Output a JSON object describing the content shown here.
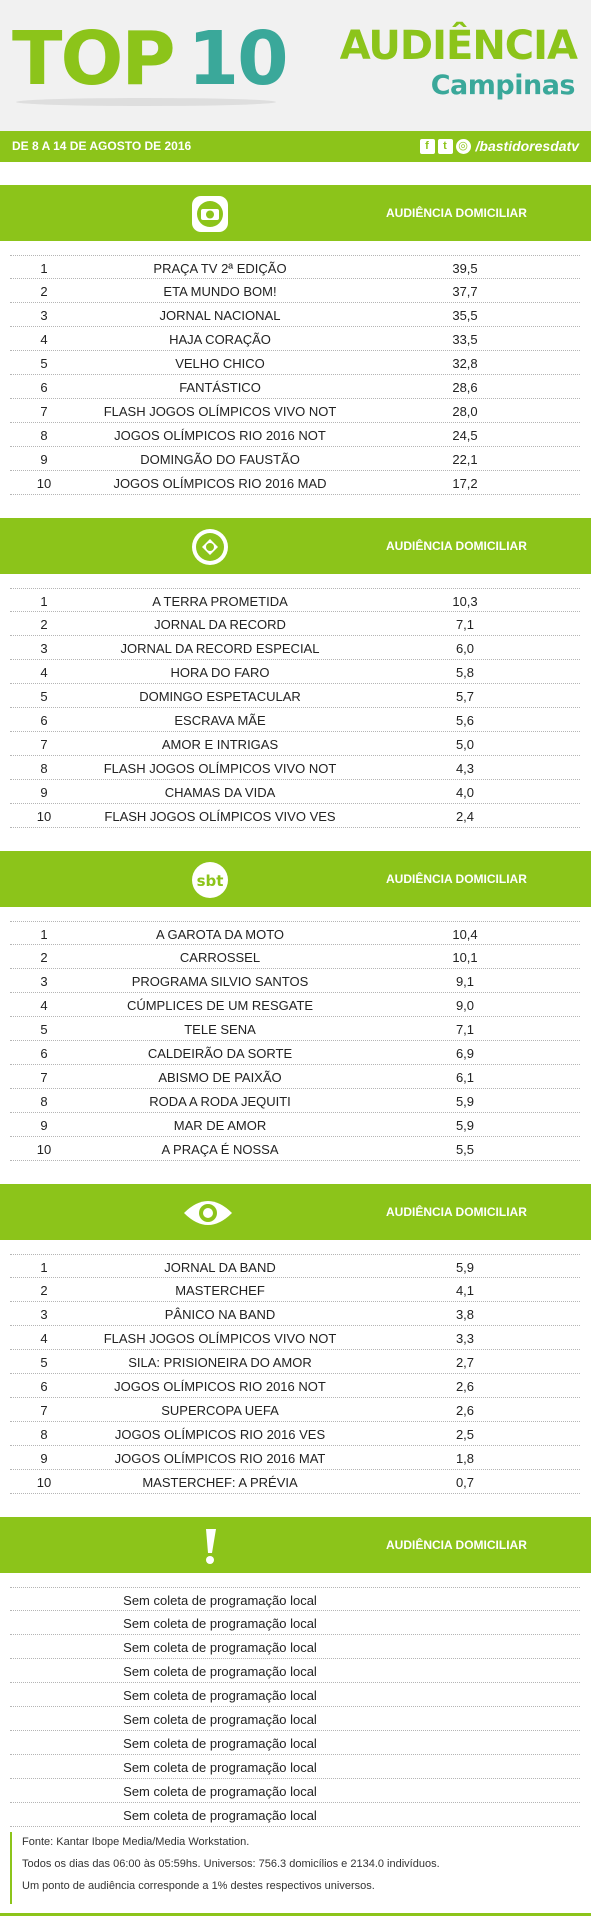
{
  "header": {
    "top": "TOP",
    "ten": "10",
    "audience_title": "AUDIÊNCIA",
    "audience_city": "Campinas"
  },
  "datebar": {
    "date": "DE 8 A 14 DE AGOSTO DE 2016",
    "handle": "/bastidoresdatv",
    "icons": [
      "facebook-icon",
      "twitter-icon",
      "instagram-icon"
    ]
  },
  "colors": {
    "accent": "#8cc41a",
    "secondary": "#3aa89a"
  },
  "sections": [
    {
      "logo": "globo-logo-icon",
      "label": "AUDIÊNCIA DOMICILIAR",
      "rows": [
        {
          "rank": "1",
          "program": "PRAÇA TV 2ª EDIÇÃO",
          "value": "39,5"
        },
        {
          "rank": "2",
          "program": "ETA MUNDO BOM!",
          "value": "37,7"
        },
        {
          "rank": "3",
          "program": "JORNAL NACIONAL",
          "value": "35,5"
        },
        {
          "rank": "4",
          "program": "HAJA CORAÇÃO",
          "value": "33,5"
        },
        {
          "rank": "5",
          "program": "VELHO CHICO",
          "value": "32,8"
        },
        {
          "rank": "6",
          "program": "FANTÁSTICO",
          "value": "28,6"
        },
        {
          "rank": "7",
          "program": "FLASH JOGOS OLÍMPICOS VIVO NOT",
          "value": "28,0"
        },
        {
          "rank": "8",
          "program": "JOGOS OLÍMPICOS RIO 2016 NOT",
          "value": "24,5"
        },
        {
          "rank": "9",
          "program": "DOMINGÃO DO FAUSTÃO",
          "value": "22,1"
        },
        {
          "rank": "10",
          "program": "JOGOS OLÍMPICOS RIO 2016 MAD",
          "value": "17,2"
        }
      ]
    },
    {
      "logo": "record-logo-icon",
      "label": "AUDIÊNCIA DOMICILIAR",
      "rows": [
        {
          "rank": "1",
          "program": "A TERRA PROMETIDA",
          "value": "10,3"
        },
        {
          "rank": "2",
          "program": "JORNAL DA RECORD",
          "value": "7,1"
        },
        {
          "rank": "3",
          "program": "JORNAL DA RECORD ESPECIAL",
          "value": "6,0"
        },
        {
          "rank": "4",
          "program": "HORA DO FARO",
          "value": "5,8"
        },
        {
          "rank": "5",
          "program": "DOMINGO ESPETACULAR",
          "value": "5,7"
        },
        {
          "rank": "6",
          "program": "ESCRAVA MÃE",
          "value": "5,6"
        },
        {
          "rank": "7",
          "program": "AMOR E INTRIGAS",
          "value": "5,0"
        },
        {
          "rank": "8",
          "program": "FLASH JOGOS OLÍMPICOS VIVO NOT",
          "value": "4,3"
        },
        {
          "rank": "9",
          "program": "CHAMAS DA VIDA",
          "value": "4,0"
        },
        {
          "rank": "10",
          "program": "FLASH JOGOS OLÍMPICOS VIVO VES",
          "value": "2,4"
        }
      ]
    },
    {
      "logo": "sbt-logo-icon",
      "logo_text": "sbt",
      "label": "AUDIÊNCIA DOMICILIAR",
      "rows": [
        {
          "rank": "1",
          "program": "A GAROTA DA MOTO",
          "value": "10,4"
        },
        {
          "rank": "2",
          "program": "CARROSSEL",
          "value": "10,1"
        },
        {
          "rank": "3",
          "program": "PROGRAMA SILVIO SANTOS",
          "value": "9,1"
        },
        {
          "rank": "4",
          "program": "CÚMPLICES DE UM RESGATE",
          "value": "9,0"
        },
        {
          "rank": "5",
          "program": "TELE SENA",
          "value": "7,1"
        },
        {
          "rank": "6",
          "program": "CALDEIRÃO DA SORTE",
          "value": "6,9"
        },
        {
          "rank": "7",
          "program": "ABISMO DE PAIXÃO",
          "value": "6,1"
        },
        {
          "rank": "8",
          "program": "RODA A RODA JEQUITI",
          "value": "5,9"
        },
        {
          "rank": "9",
          "program": "MAR DE AMOR",
          "value": "5,9"
        },
        {
          "rank": "10",
          "program": "A PRAÇA É NOSSA",
          "value": "5,5"
        }
      ]
    },
    {
      "logo": "band-eye-logo-icon",
      "label": "AUDIÊNCIA DOMICILIAR",
      "rows": [
        {
          "rank": "1",
          "program": "JORNAL DA BAND",
          "value": "5,9"
        },
        {
          "rank": "2",
          "program": "MASTERCHEF",
          "value": "4,1"
        },
        {
          "rank": "3",
          "program": "PÂNICO NA BAND",
          "value": "3,8"
        },
        {
          "rank": "4",
          "program": "FLASH JOGOS OLÍMPICOS VIVO NOT",
          "value": "3,3"
        },
        {
          "rank": "5",
          "program": "SILA: PRISIONEIRA DO AMOR",
          "value": "2,7"
        },
        {
          "rank": "6",
          "program": "JOGOS OLÍMPICOS RIO 2016 NOT",
          "value": "2,6"
        },
        {
          "rank": "7",
          "program": "SUPERCOPA UEFA",
          "value": "2,6"
        },
        {
          "rank": "8",
          "program": "JOGOS OLÍMPICOS RIO 2016 VES",
          "value": "2,5"
        },
        {
          "rank": "9",
          "program": "JOGOS OLÍMPICOS RIO 2016 MAT",
          "value": "1,8"
        },
        {
          "rank": "10",
          "program": "MASTERCHEF: A PRÉVIA",
          "value": "0,7"
        }
      ]
    },
    {
      "logo": "exclamation-logo-icon",
      "logo_text": "!",
      "label": "AUDIÊNCIA DOMICILIAR",
      "rows": [
        {
          "rank": "",
          "program": "Sem coleta de programação local",
          "value": ""
        },
        {
          "rank": "",
          "program": "Sem coleta de programação local",
          "value": ""
        },
        {
          "rank": "",
          "program": "Sem coleta de programação local",
          "value": ""
        },
        {
          "rank": "",
          "program": "Sem coleta de programação local",
          "value": ""
        },
        {
          "rank": "",
          "program": "Sem coleta de programação local",
          "value": ""
        },
        {
          "rank": "",
          "program": "Sem coleta de programação local",
          "value": ""
        },
        {
          "rank": "",
          "program": "Sem coleta de programação local",
          "value": ""
        },
        {
          "rank": "",
          "program": "Sem coleta de programação local",
          "value": ""
        },
        {
          "rank": "",
          "program": "Sem coleta de programação local",
          "value": ""
        },
        {
          "rank": "",
          "program": "Sem coleta de programação local",
          "value": ""
        }
      ]
    }
  ],
  "footer": {
    "line1": "Fonte: Kantar Ibope Media/Media Workstation.",
    "line2": "Todos os dias das 06:00 às 05:59hs. Universos: 756.3 domicílios e 2134.0 indivíduos.",
    "line3": "Um ponto de audiência corresponde a 1% destes respectivos universos."
  }
}
